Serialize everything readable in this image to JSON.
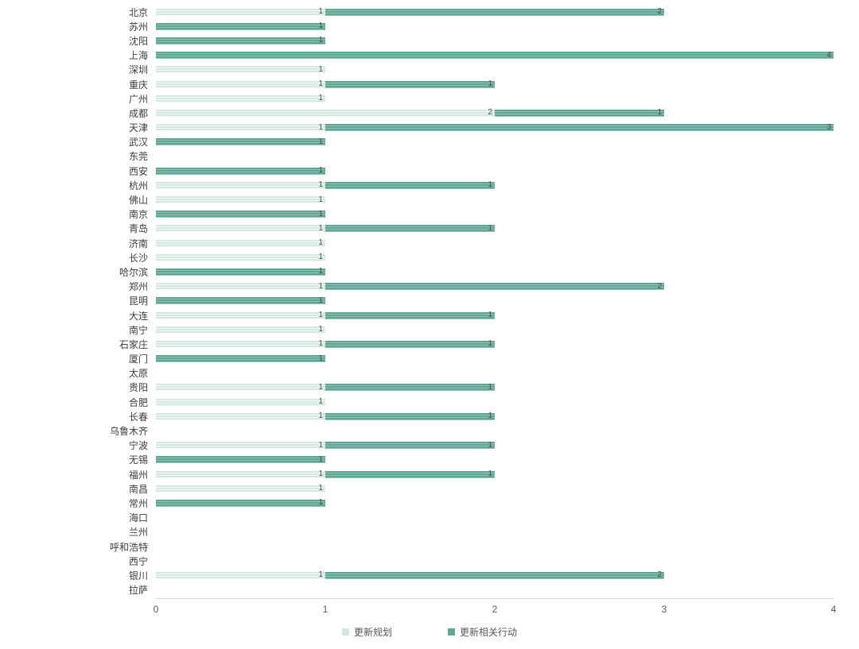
{
  "chart_data": {
    "type": "bar",
    "orientation": "horizontal",
    "stacked": true,
    "title": "",
    "xlabel": "",
    "ylabel": "",
    "xlim": [
      0,
      4
    ],
    "xticks": [
      "0",
      "1",
      "2",
      "3",
      "4"
    ],
    "grid": false,
    "legend_position": "bottom",
    "categories": [
      "北京",
      "苏州",
      "沈阳",
      "上海",
      "深圳",
      "重庆",
      "广州",
      "成都",
      "天津",
      "武汉",
      "东莞",
      "西安",
      "杭州",
      "佛山",
      "南京",
      "青岛",
      "济南",
      "长沙",
      "哈尔滨",
      "郑州",
      "昆明",
      "大连",
      "南宁",
      "石家庄",
      "厦门",
      "太原",
      "贵阳",
      "合肥",
      "长春",
      "乌鲁木齐",
      "宁波",
      "无锡",
      "福州",
      "南昌",
      "常州",
      "海口",
      "兰州",
      "呼和浩特",
      "西宁",
      "银川",
      "拉萨"
    ],
    "series": [
      {
        "name": "更新规划",
        "color": "#d2e8e1",
        "values": [
          1,
          0,
          0,
          0,
          1,
          1,
          1,
          2,
          1,
          0,
          0,
          0,
          1,
          1,
          0,
          1,
          1,
          1,
          0,
          1,
          0,
          1,
          1,
          1,
          0,
          0,
          1,
          1,
          1,
          0,
          1,
          0,
          1,
          1,
          0,
          0,
          0,
          0,
          0,
          1,
          0
        ]
      },
      {
        "name": "更新相关行动",
        "color": "#60a695",
        "values": [
          2,
          1,
          1,
          4,
          0,
          1,
          0,
          1,
          3,
          1,
          0,
          1,
          1,
          0,
          1,
          1,
          0,
          0,
          1,
          2,
          1,
          1,
          0,
          1,
          1,
          0,
          1,
          0,
          1,
          0,
          1,
          1,
          1,
          0,
          1,
          0,
          0,
          0,
          0,
          2,
          0
        ]
      }
    ]
  }
}
